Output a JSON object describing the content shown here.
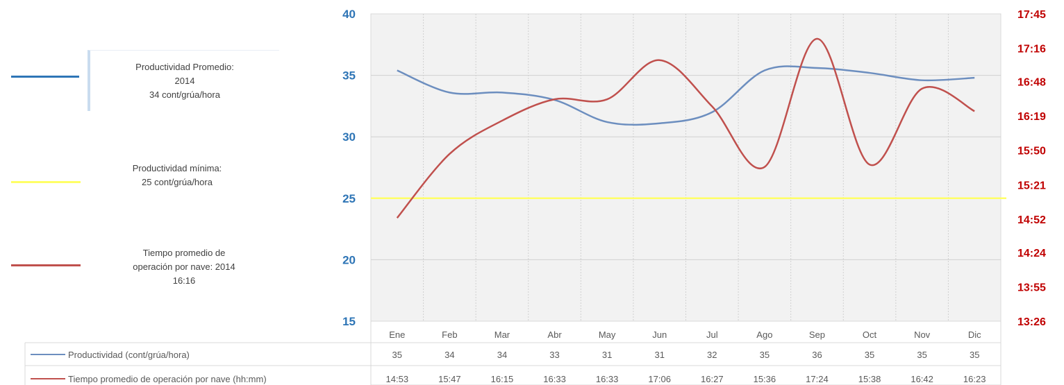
{
  "chart_data": {
    "type": "line",
    "categories": [
      "Ene",
      "Feb",
      "Mar",
      "Abr",
      "May",
      "Jun",
      "Jul",
      "Ago",
      "Sep",
      "Oct",
      "Nov",
      "Dic"
    ],
    "left_axis": {
      "ylim": [
        15,
        40
      ],
      "ticks": [
        "15",
        "20",
        "25",
        "30",
        "35",
        "40"
      ],
      "color": "#2e75b6"
    },
    "right_axis": {
      "ticks": [
        "13:26",
        "13:55",
        "14:24",
        "14:52",
        "15:21",
        "15:50",
        "16:19",
        "16:48",
        "17:16",
        "17:45"
      ],
      "color": "#c00000"
    },
    "series": [
      {
        "name": "Productividad (cont/grúa/hora)",
        "axis": "left",
        "color": "#6c8ebf",
        "values": [
          35.4,
          33.6,
          33.6,
          33.0,
          31.2,
          31.1,
          32.0,
          35.4,
          35.6,
          35.2,
          34.6,
          34.8
        ],
        "labels": [
          "35",
          "34",
          "34",
          "33",
          "31",
          "31",
          "32",
          "35",
          "36",
          "35",
          "35",
          "35"
        ]
      },
      {
        "name": "Tiempo promedio de operación por nave (hh:mm)",
        "axis": "right",
        "color": "#c0504d",
        "values": [
          "14:53",
          "15:47",
          "16:15",
          "16:33",
          "16:33",
          "17:06",
          "16:27",
          "15:36",
          "17:24",
          "15:38",
          "16:42",
          "16:23"
        ],
        "labels": [
          "14:53",
          "15:47",
          "16:15",
          "16:33",
          "16:33",
          "17:06",
          "16:27",
          "15:36",
          "17:24",
          "15:38",
          "16:42",
          "16:23"
        ]
      },
      {
        "name": "Productividad mínima",
        "axis": "left",
        "color": "#ffff66",
        "values": [
          25,
          25,
          25,
          25,
          25,
          25,
          25,
          25,
          25,
          25,
          25,
          25
        ]
      }
    ],
    "grid": true
  },
  "legend": {
    "productividad": {
      "title": "Productividad Promedio:",
      "year": "2014",
      "value": "34 cont/grúa/hora",
      "color": "#2e75b6"
    },
    "minima": {
      "title": "Productividad mínima:",
      "value": "25 cont/grúa/hora",
      "color": "#ffff66"
    },
    "tiempo": {
      "title": "Tiempo promedio de",
      "line2": "operación por nave: 2014",
      "value": "16:16",
      "color": "#c0504d"
    }
  }
}
